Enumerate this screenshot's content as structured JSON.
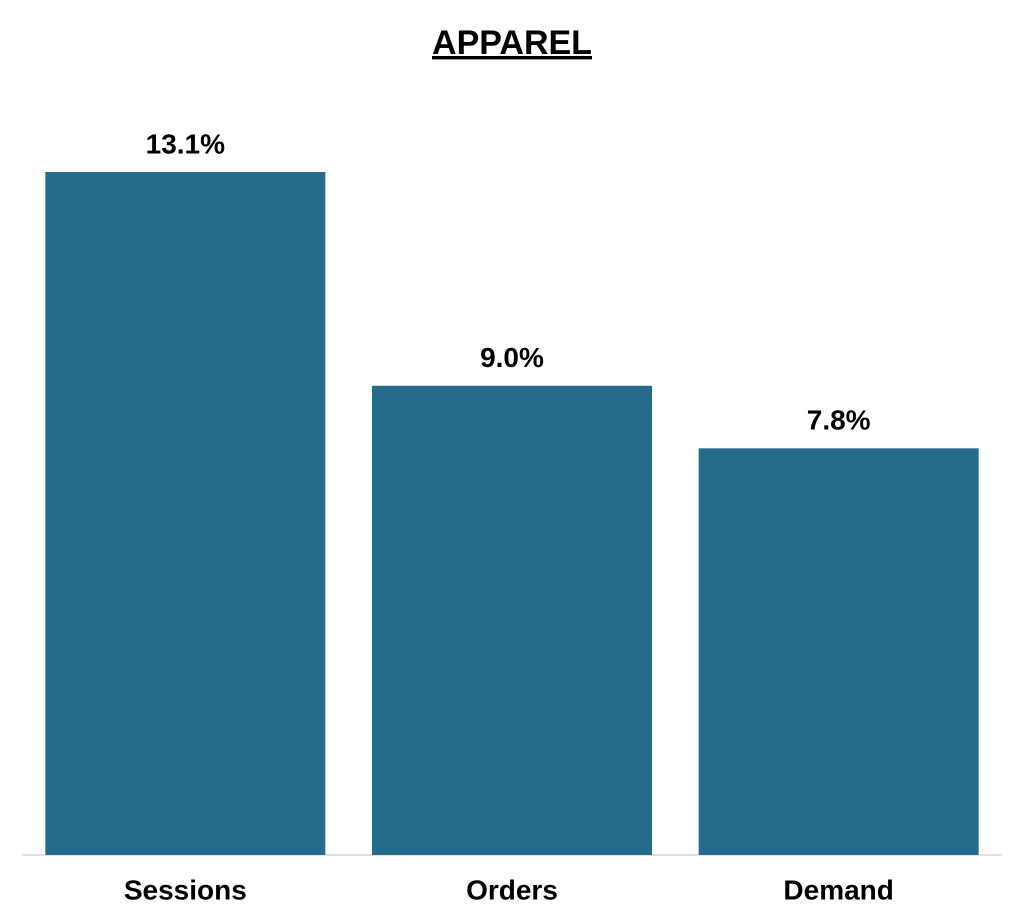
{
  "chart_data": {
    "type": "bar",
    "title": "APPAREL",
    "categories": [
      "Sessions",
      "Orders",
      "Demand"
    ],
    "values": [
      13.1,
      9.0,
      7.8
    ],
    "value_labels": [
      "13.1%",
      "9.0%",
      "7.8%"
    ],
    "color": "#256b8c"
  }
}
